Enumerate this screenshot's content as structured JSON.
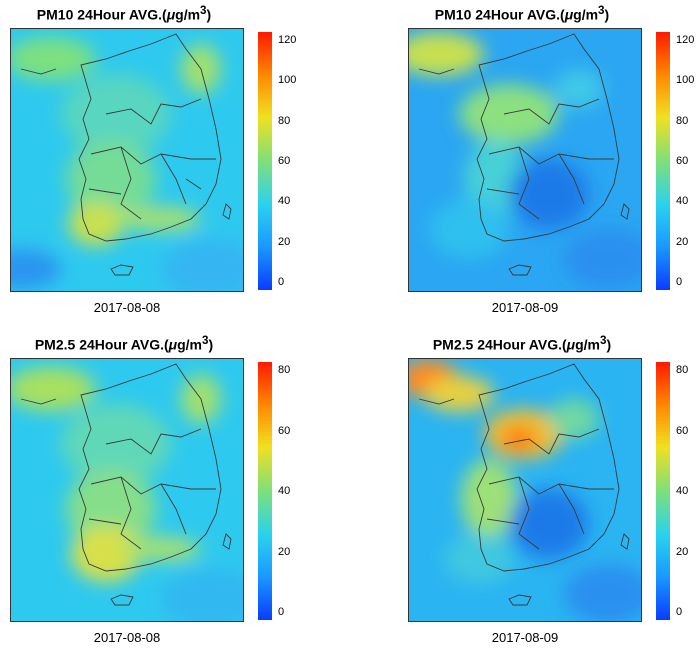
{
  "panels": [
    {
      "id": "p1",
      "title_main": "PM10 24Hour AVG.(",
      "title_mu": "μ",
      "title_unit": "g/m",
      "title_sup": "3",
      "title_end": ")",
      "date": "2017-08-08",
      "ticks": [
        "0",
        "20",
        "40",
        "60",
        "80",
        "100",
        "120"
      ],
      "scale_max": 120
    },
    {
      "id": "p2",
      "title_main": "PM10 24Hour AVG.(",
      "title_mu": "μ",
      "title_unit": "g/m",
      "title_sup": "3",
      "title_end": ")",
      "date": "2017-08-09",
      "ticks": [
        "0",
        "20",
        "40",
        "60",
        "80",
        "100",
        "120"
      ],
      "scale_max": 120
    },
    {
      "id": "p3",
      "title_main": "PM2.5 24Hour AVG.(",
      "title_mu": "μ",
      "title_unit": "g/m",
      "title_sup": "3",
      "title_end": ")",
      "date": "2017-08-08",
      "ticks": [
        "0",
        "20",
        "40",
        "60",
        "80"
      ],
      "scale_max": 80
    },
    {
      "id": "p4",
      "title_main": "PM2.5 24Hour AVG.(",
      "title_mu": "μ",
      "title_unit": "g/m",
      "title_sup": "3",
      "title_end": ")",
      "date": "2017-08-09",
      "ticks": [
        "0",
        "20",
        "40",
        "60",
        "80"
      ],
      "scale_max": 80
    }
  ],
  "colors": {
    "low": "#0a3cff",
    "mid": "#2ad2ee",
    "high": "#f0e020",
    "max": "#ff1a00"
  }
}
